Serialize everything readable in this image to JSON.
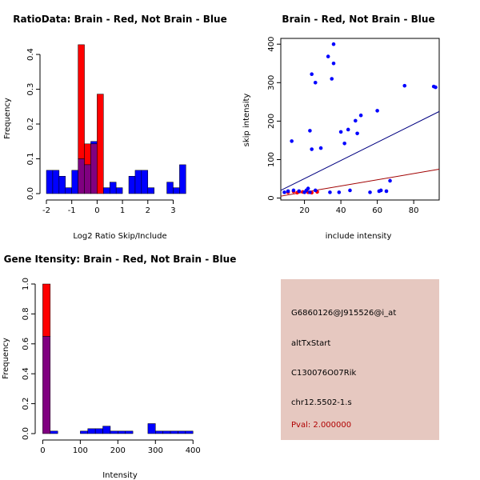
{
  "colors": {
    "red": "#ff0000",
    "blue": "#0000ff",
    "purple": "#800080",
    "panel": "#e6c8c0",
    "pval": "#b00000",
    "line_red": "#a00000",
    "line_blue": "#000080"
  },
  "chart_data": [
    {
      "type": "bar",
      "title": "RatioData: Brain - Red, Not Brain - Blue",
      "xlabel": "Log2 Ratio Skip/Include",
      "ylabel": "Frequency",
      "xlim": [
        -2.0,
        3.9
      ],
      "ylim": [
        0,
        0.43
      ],
      "xticks": [
        -2,
        -1,
        0,
        1,
        2,
        3
      ],
      "yticks": [
        0.0,
        0.1,
        0.2,
        0.3,
        0.4
      ],
      "bin_width": 0.25,
      "bin_starts": [
        -2.0,
        -1.75,
        -1.5,
        -1.25,
        -1.0,
        -0.75,
        -0.5,
        -0.25,
        0.0,
        0.25,
        0.5,
        0.75,
        1.0,
        1.25,
        1.5,
        1.75,
        2.0,
        2.25,
        2.5,
        2.75,
        3.0,
        3.25,
        3.5
      ],
      "series": [
        {
          "name": "Brain",
          "color": "red",
          "values": [
            0,
            0,
            0,
            0,
            0,
            0.428,
            0.143,
            0.143,
            0.286,
            0,
            0,
            0,
            0,
            0,
            0,
            0,
            0,
            0,
            0,
            0,
            0,
            0,
            0
          ]
        },
        {
          "name": "Not Brain",
          "color": "blue",
          "values": [
            0.067,
            0.067,
            0.05,
            0.017,
            0.067,
            0.1,
            0.083,
            0.15,
            0,
            0.017,
            0.033,
            0.017,
            0,
            0.05,
            0.067,
            0.067,
            0.017,
            0,
            0,
            0.033,
            0.017,
            0.083,
            0
          ]
        }
      ]
    },
    {
      "type": "scatter",
      "title": "Brain - Red, Not Brain - Blue",
      "xlabel": "include intensity",
      "ylabel": "skip intensity",
      "xlim": [
        7,
        94
      ],
      "ylim": [
        -5,
        415
      ],
      "xticks": [
        20,
        40,
        60,
        80
      ],
      "yticks": [
        0,
        100,
        200,
        300,
        400
      ],
      "series": [
        {
          "name": "Brain",
          "color": "red",
          "x": [
            11,
            14,
            16,
            19,
            22,
            24,
            27
          ],
          "y": [
            15,
            17,
            14,
            16,
            15,
            14,
            16
          ]
        },
        {
          "name": "Not Brain",
          "color": "blue",
          "x": [
            9,
            11,
            13,
            14,
            17,
            20,
            21,
            22,
            23,
            23,
            24,
            24,
            26,
            26,
            29,
            33,
            34,
            35,
            36,
            36,
            39,
            40,
            42,
            44,
            45,
            48,
            49,
            51,
            56,
            60,
            61,
            62,
            65,
            67,
            75,
            91,
            92
          ],
          "y": [
            15,
            18,
            148,
            20,
            18,
            15,
            20,
            25,
            175,
            15,
            322,
            127,
            300,
            20,
            130,
            368,
            15,
            310,
            400,
            350,
            15,
            172,
            142,
            178,
            20,
            201,
            168,
            215,
            15,
            227,
            18,
            20,
            18,
            45,
            292,
            290,
            288
          ]
        }
      ],
      "fit_lines": [
        {
          "color": "line_blue",
          "x": [
            7,
            94
          ],
          "y": [
            20,
            225
          ]
        },
        {
          "color": "line_red",
          "x": [
            7,
            94
          ],
          "y": [
            5,
            75
          ]
        }
      ]
    },
    {
      "type": "bar",
      "title": "Gene Itensity: Brain - Red, Not Brain - Blue",
      "xlabel": "Intensity",
      "ylabel": "Frequency",
      "xlim": [
        -3,
        408
      ],
      "ylim": [
        0,
        1.0
      ],
      "xticks": [
        0,
        100,
        200,
        300,
        400
      ],
      "yticks": [
        0.0,
        0.2,
        0.4,
        0.6,
        0.8,
        1.0
      ],
      "bin_width": 20,
      "bin_starts": [
        0,
        20,
        40,
        60,
        80,
        100,
        120,
        140,
        160,
        180,
        200,
        220,
        240,
        260,
        280,
        300,
        320,
        340,
        360,
        380
      ],
      "series": [
        {
          "name": "Brain",
          "color": "red",
          "values": [
            1.0,
            0,
            0,
            0,
            0,
            0,
            0,
            0,
            0,
            0,
            0,
            0,
            0,
            0,
            0,
            0,
            0,
            0,
            0,
            0
          ]
        },
        {
          "name": "Not Brain",
          "color": "blue",
          "values": [
            0.65,
            0.017,
            0,
            0,
            0,
            0.017,
            0.033,
            0.033,
            0.05,
            0.017,
            0.017,
            0.017,
            0,
            0,
            0.067,
            0.017,
            0.017,
            0.017,
            0.017,
            0.017
          ]
        }
      ]
    }
  ],
  "info_panel": {
    "probe_id": "G6860126@J915526@i_at",
    "event_type": "altTxStart",
    "gene": "C130076O07Rik",
    "location": "chr12.5502-1.s",
    "pval": "Pval: 2.000000"
  }
}
